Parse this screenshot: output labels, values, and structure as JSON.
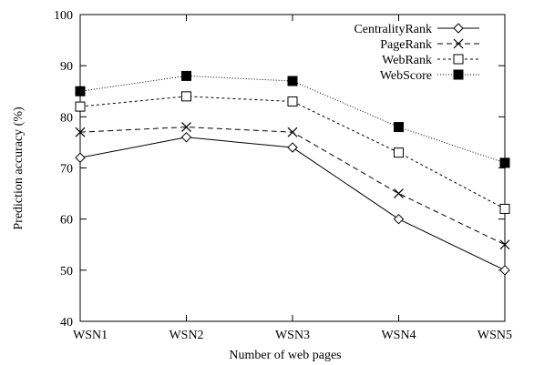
{
  "chart_data": {
    "type": "line",
    "categories": [
      "WSN1",
      "WSN2",
      "WSN3",
      "WSN4",
      "WSN5"
    ],
    "xlabel": "Number of web pages",
    "ylabel": "Prediction accuracy (%)",
    "ylim": [
      40,
      100
    ],
    "yticks": [
      40,
      50,
      60,
      70,
      80,
      90,
      100
    ],
    "grid": false,
    "legend_position": "top-right",
    "series": [
      {
        "name": "CentralityRank",
        "values": [
          72,
          76,
          74,
          60,
          50
        ],
        "marker": "diamond-open",
        "dash": "solid"
      },
      {
        "name": "PageRank",
        "values": [
          77,
          78,
          77,
          65,
          55
        ],
        "marker": "cross",
        "dash": "dashed"
      },
      {
        "name": "WebRank",
        "values": [
          82,
          84,
          83,
          73,
          62
        ],
        "marker": "square-open",
        "dash": "short-dashed"
      },
      {
        "name": "WebScore",
        "values": [
          85,
          88,
          87,
          78,
          71
        ],
        "marker": "square-filled",
        "dash": "dotted"
      }
    ]
  }
}
